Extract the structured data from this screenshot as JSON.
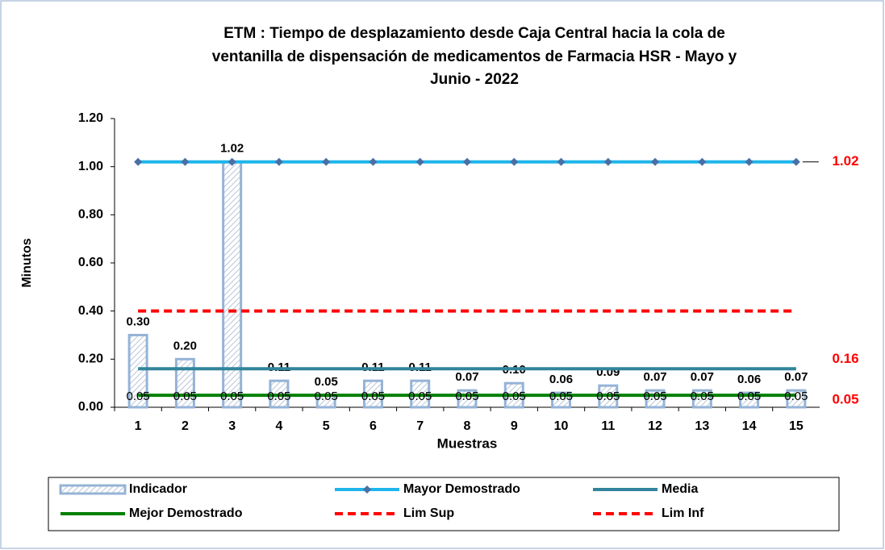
{
  "chart_data": {
    "type": "bar",
    "title": [
      "ETM : Tiempo de desplazamiento desde Caja Central hacia la cola de",
      "ventanilla de dispensación de medicamentos de Farmacia  HSR - Mayo y",
      "Junio -  2022"
    ],
    "x_label": "Muestras",
    "y_label": "Minutos",
    "categories": [
      1,
      2,
      3,
      4,
      5,
      6,
      7,
      8,
      9,
      10,
      11,
      12,
      13,
      14,
      15
    ],
    "ylim": [
      0,
      1.2
    ],
    "yticks": [
      {
        "value": 0,
        "label": "0.00"
      },
      {
        "value": 0.2,
        "label": "0.20"
      },
      {
        "value": 0.4,
        "label": "0.40"
      },
      {
        "value": 0.6,
        "label": "0.60"
      },
      {
        "value": 0.8,
        "label": "0.80"
      },
      {
        "value": 1.0,
        "label": "1.00"
      },
      {
        "value": 1.2,
        "label": "1.20"
      }
    ],
    "series": [
      {
        "name": "Indicador",
        "kind": "bar",
        "color": "#95b3d7",
        "values": [
          0.3,
          0.2,
          1.02,
          0.11,
          0.05,
          0.11,
          0.11,
          0.07,
          0.1,
          0.06,
          0.09,
          0.07,
          0.07,
          0.06,
          0.07
        ],
        "value_labels": [
          "0.30",
          "0.20",
          "1.02",
          "0.11",
          "0.05",
          "0.11",
          "0.11",
          "0.07",
          "0.10",
          "0.06",
          "0.09",
          "0.07",
          "0.07",
          "0.06",
          "0.07"
        ]
      },
      {
        "name": "Mayor Demostrado",
        "kind": "line",
        "color": "#1fb5ea",
        "marker_color": "#4a6fa5",
        "values": [
          1.02,
          1.02,
          1.02,
          1.02,
          1.02,
          1.02,
          1.02,
          1.02,
          1.02,
          1.02,
          1.02,
          1.02,
          1.02,
          1.02,
          1.02
        ]
      },
      {
        "name": "Media",
        "kind": "line",
        "color": "#31849b",
        "values": [
          0.16,
          0.16,
          0.16,
          0.16,
          0.16,
          0.16,
          0.16,
          0.16,
          0.16,
          0.16,
          0.16,
          0.16,
          0.16,
          0.16,
          0.16
        ]
      },
      {
        "name": "Mejor Demostrado",
        "kind": "line",
        "color": "#008000",
        "values": [
          0.05,
          0.05,
          0.05,
          0.05,
          0.05,
          0.05,
          0.05,
          0.05,
          0.05,
          0.05,
          0.05,
          0.05,
          0.05,
          0.05,
          0.05
        ],
        "value_labels": [
          "0.05",
          "0.05",
          "0.05",
          "0.05",
          "0.05",
          "0.05",
          "0.05",
          "0.05",
          "0.05",
          "0.05",
          "0.05",
          "0.05",
          "0.05",
          "0.05",
          "0.05"
        ]
      },
      {
        "name": "Lim Sup",
        "kind": "line",
        "color": "#ff0000",
        "dashed": true,
        "values": [
          0.4,
          0.4,
          0.4,
          0.4,
          0.4,
          0.4,
          0.4,
          0.4,
          0.4,
          0.4,
          0.4,
          0.4,
          0.4,
          0.4,
          0.4
        ]
      },
      {
        "name": "Lim Inf",
        "kind": "line",
        "color": "#ff0000",
        "dashed": true,
        "values": [
          null,
          null,
          null,
          null,
          null,
          null,
          null,
          null,
          null,
          null,
          null,
          null,
          null,
          null,
          null
        ]
      }
    ],
    "annotations": [
      {
        "text": "1.02",
        "value": 1.02
      },
      {
        "text": "0.16",
        "value": 0.16
      },
      {
        "text": "0.05",
        "value": 0.05
      }
    ]
  }
}
